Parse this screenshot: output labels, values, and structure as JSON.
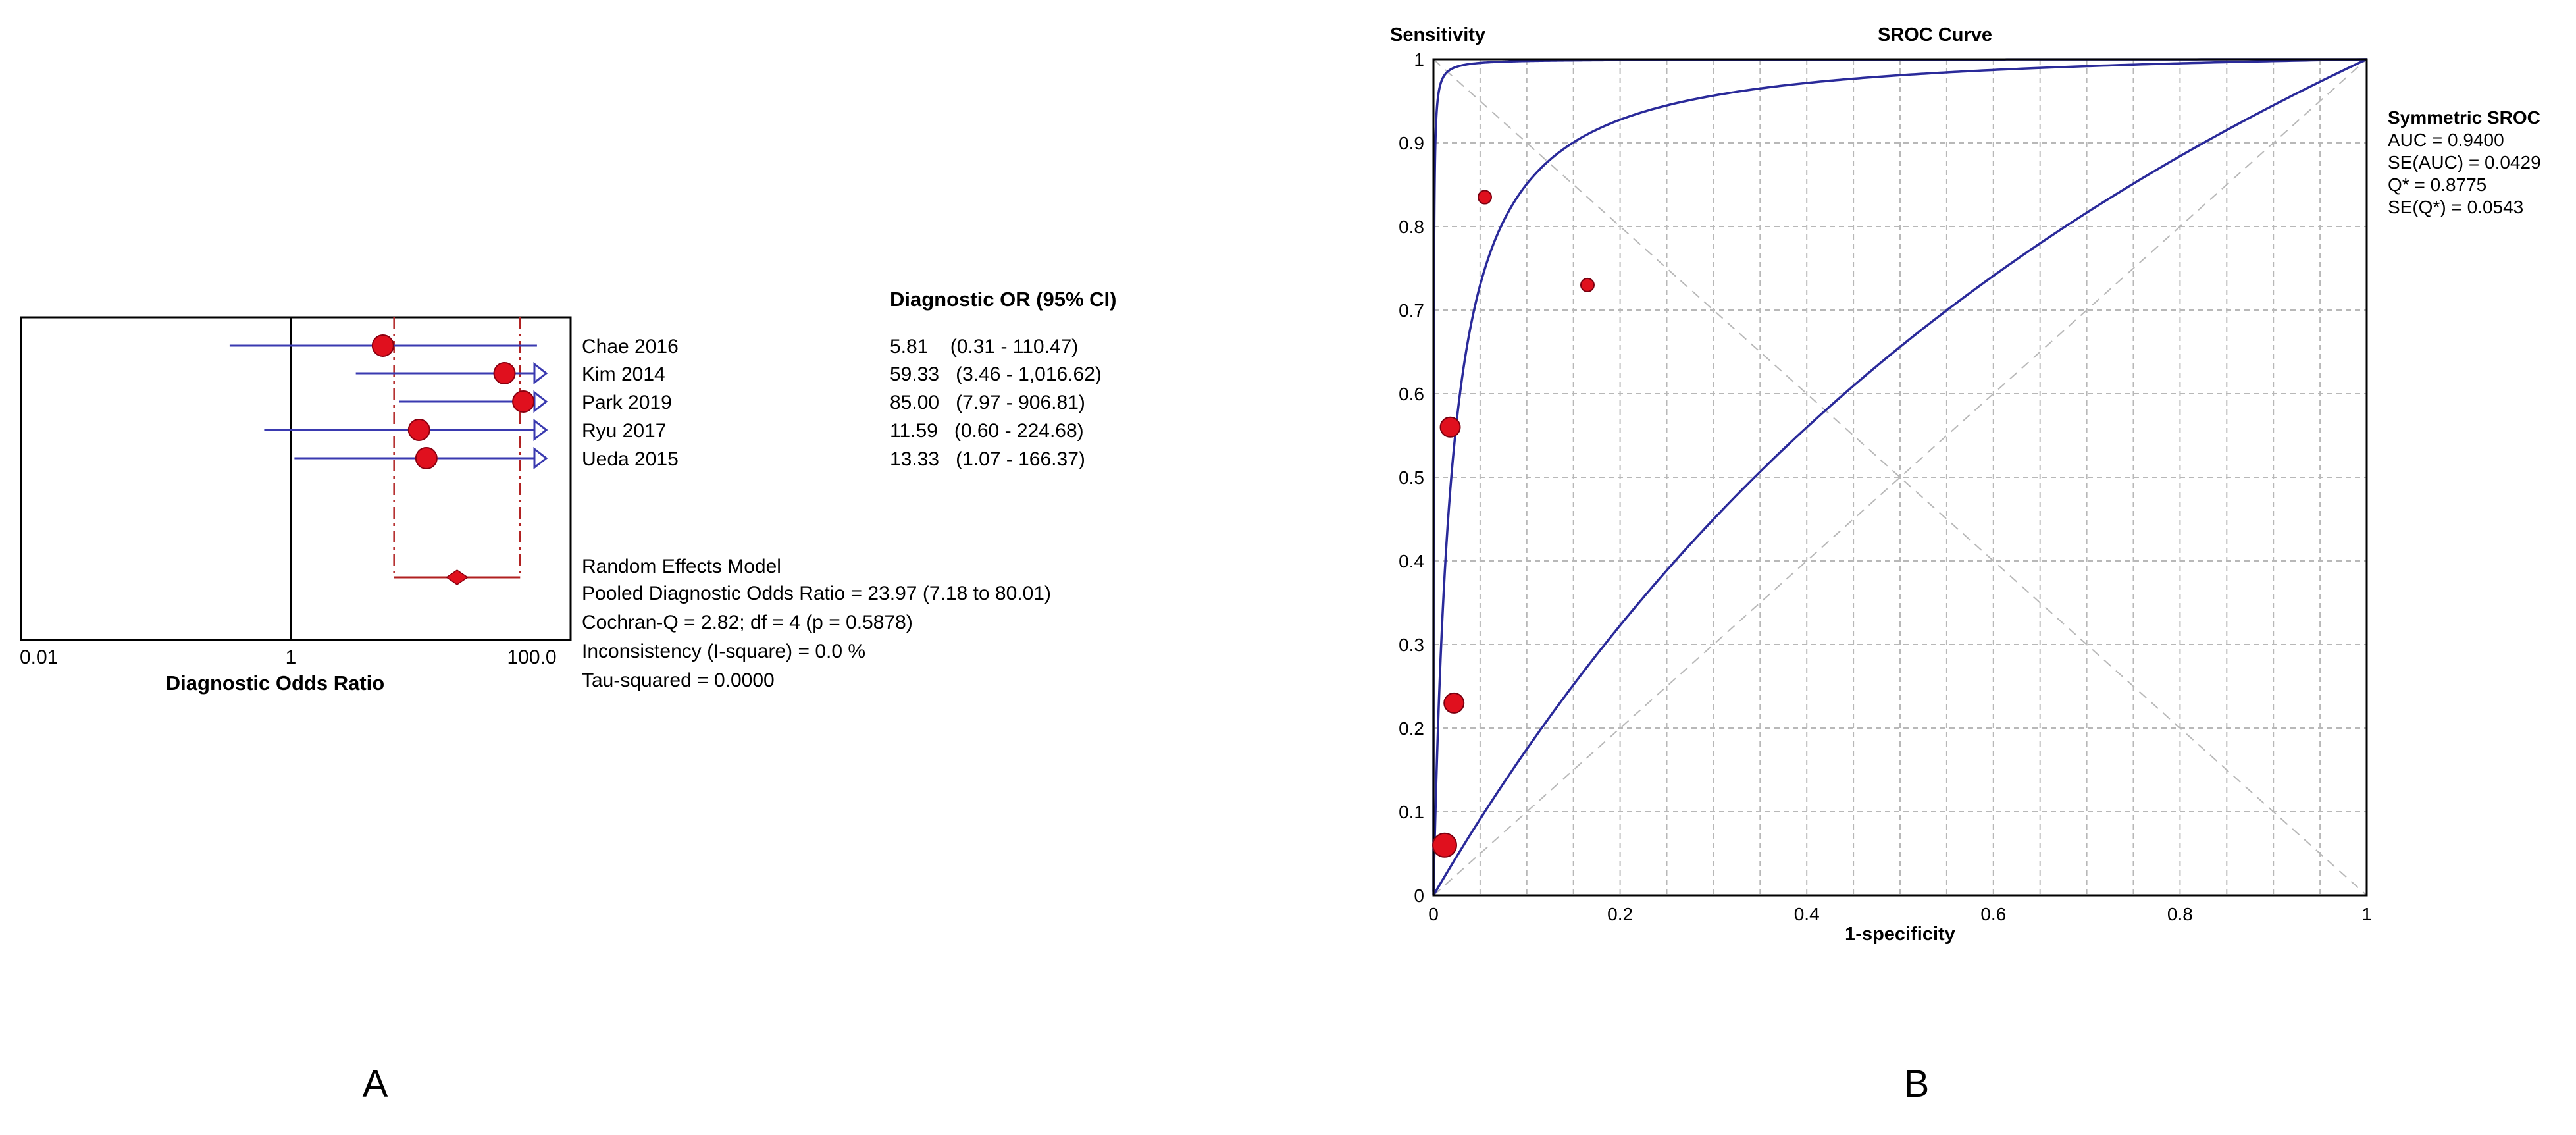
{
  "panel_labels": {
    "a": "A",
    "b": "B"
  },
  "forest": {
    "header": "Diagnostic OR (95% CI)",
    "xlabel": "Diagnostic Odds Ratio",
    "tick_labels": [
      "0.01",
      "1",
      "100.0"
    ],
    "summary_text": [
      "Random Effects Model",
      "Pooled Diagnostic Odds Ratio = 23.97 (7.18 to 80.01)",
      "Cochran-Q = 2.82; df =  4 (p = 0.5878)",
      "Inconsistency (I-square) = 0.0 %",
      "Tau-squared = 0.0000"
    ],
    "colors": {
      "axis": "#000000",
      "ci": "#3a3ab0",
      "marker": "#e0101e",
      "pooled": "#b02020"
    }
  },
  "sroc": {
    "title": "SROC Curve",
    "ylabel": "Sensitivity",
    "xlabel": "1-specificity",
    "x_tick_labels": [
      "0",
      "0.2",
      "0.4",
      "0.6",
      "0.8",
      "1"
    ],
    "y_tick_labels": [
      "0",
      "0.1",
      "0.2",
      "0.3",
      "0.4",
      "0.5",
      "0.6",
      "0.7",
      "0.8",
      "0.9",
      "1"
    ],
    "stats": [
      "Symmetric SROC",
      "AUC = 0.9400",
      "SE(AUC) = 0.0429",
      "Q* = 0.8775",
      "SE(Q*) = 0.0543"
    ],
    "colors": {
      "curve": "#2a2a9a",
      "grid": "#b8b8b8",
      "point": "#e0101e"
    }
  },
  "chart_data": [
    {
      "type": "forest",
      "title": "",
      "xlabel": "Diagnostic Odds Ratio",
      "x_scale": "log",
      "xlim": [
        0.01,
        100.0
      ],
      "reference_line": 1,
      "studies": [
        {
          "name": "Chae 2016",
          "or": 5.81,
          "lower": 0.31,
          "upper": 110.47,
          "ci_text": "5.81    (0.31 - 110.47)",
          "arrow": true
        },
        {
          "name": "Kim 2014",
          "or": 59.33,
          "lower": 3.46,
          "upper": 1016.62,
          "ci_text": "59.33   (3.46 - 1,016.62)",
          "arrow": true
        },
        {
          "name": "Park 2019",
          "or": 85.0,
          "lower": 7.97,
          "upper": 906.81,
          "ci_text": "85.00   (7.97 - 906.81)",
          "arrow": true
        },
        {
          "name": "Ryu 2017",
          "or": 11.59,
          "lower": 0.6,
          "upper": 224.68,
          "ci_text": "11.59   (0.60 - 224.68)",
          "arrow": true
        },
        {
          "name": "Ueda 2015",
          "or": 13.33,
          "lower": 1.07,
          "upper": 166.37,
          "ci_text": "13.33   (1.07 - 166.37)",
          "arrow": true
        }
      ],
      "pooled": {
        "or": 23.97,
        "lower": 7.18,
        "upper": 80.01
      }
    },
    {
      "type": "scatter",
      "title": "SROC Curve",
      "xlabel": "1-specificity",
      "ylabel": "Sensitivity",
      "xlim": [
        0,
        1
      ],
      "ylim": [
        0,
        1
      ],
      "grid": true,
      "points": [
        {
          "x": 0.055,
          "y": 0.835,
          "size": "small"
        },
        {
          "x": 0.165,
          "y": 0.73,
          "size": "small"
        },
        {
          "x": 0.018,
          "y": 0.56,
          "size": "medium"
        },
        {
          "x": 0.022,
          "y": 0.23,
          "size": "medium"
        },
        {
          "x": 0.012,
          "y": 0.06,
          "size": "large"
        }
      ],
      "curves": [
        {
          "kind": "sroc",
          "auc": 0.94,
          "q_star": 0.8775
        },
        {
          "kind": "upper-bound",
          "q_star": 0.985
        },
        {
          "kind": "lower-bound",
          "q_star": 0.58
        }
      ],
      "reference_lines": [
        "diagonal",
        "anti-diagonal"
      ]
    }
  ]
}
